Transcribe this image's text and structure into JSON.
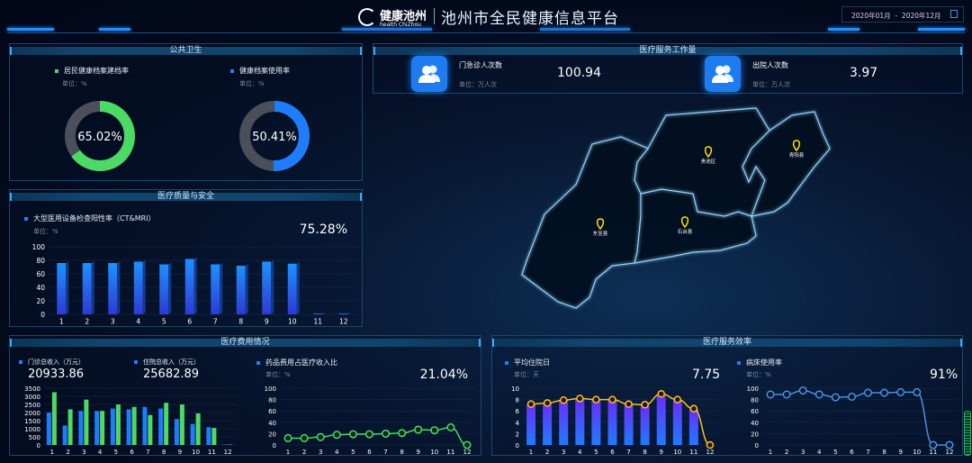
{
  "header": {
    "logo_text": "健康池州",
    "logo_sub": "health ChiZhou",
    "title": "池州市全民健康信息平台",
    "date_start": "2020年01月",
    "date_sep": "-",
    "date_end": "2020年12月"
  },
  "public_health": {
    "title": "公共卫生",
    "items": [
      {
        "label": "居民健康档案建档率",
        "unit": "单位：%",
        "value": "65.02%",
        "fraction": 0.6502,
        "color": "#4cd964"
      },
      {
        "label": "健康档案使用率",
        "unit": "单位：%",
        "value": "50.41%",
        "fraction": 0.5041,
        "color": "#1e7cff"
      }
    ]
  },
  "workload": {
    "title": "医疗服务工作量",
    "items": [
      {
        "label": "门急诊人次数",
        "unit": "单位：万人次",
        "value": "100.94"
      },
      {
        "label": "出院人次数",
        "unit": "单位：万人次",
        "value": "3.97"
      }
    ]
  },
  "map": {
    "regions": [
      "贵池区",
      "青阳县",
      "东至县",
      "石台县"
    ]
  },
  "quality": {
    "title": "医疗质量与安全",
    "label": "大型医用设备检查阳性率（CT&MRI）",
    "unit": "单位：%",
    "value": "75.28%"
  },
  "cost": {
    "title": "医疗费用情况",
    "outpatient_label": "门诊总收入（万元）",
    "outpatient_value": "20933.86",
    "inpatient_label": "住院总收入（万元）",
    "inpatient_value": "25682.89",
    "drug_label": "药品费用占医疗收入比",
    "drug_unit": "单位：%",
    "drug_value": "21.04%"
  },
  "efficiency": {
    "title": "医疗服务效率",
    "stay_label": "平均住院日",
    "stay_unit": "单位：天",
    "stay_value": "7.75",
    "bed_label": "病床使用率",
    "bed_unit": "单位：%",
    "bed_value": "91%"
  },
  "chart_data": [
    {
      "id": "ct",
      "type": "bar",
      "categories": [
        "1",
        "2",
        "3",
        "4",
        "5",
        "6",
        "7",
        "8",
        "9",
        "10",
        "11",
        "12"
      ],
      "values": [
        76,
        76,
        76,
        78,
        74,
        82,
        74,
        72,
        78,
        75,
        0,
        0
      ],
      "ylim": [
        0,
        100
      ],
      "yticks": [
        0,
        20,
        40,
        60,
        80,
        100
      ],
      "colors": [
        "#1e90ff",
        "#2c3bd6"
      ]
    },
    {
      "id": "income",
      "type": "bar",
      "categories": [
        "1",
        "2",
        "3",
        "4",
        "5",
        "6",
        "7",
        "8",
        "9",
        "10",
        "11",
        "12"
      ],
      "series": [
        {
          "values": [
            2000,
            1200,
            2100,
            2100,
            2250,
            2200,
            2350,
            2250,
            1600,
            1300,
            1100,
            0
          ],
          "color": "#1e7cff"
        },
        {
          "values": [
            3250,
            2200,
            2800,
            2100,
            2500,
            2350,
            1850,
            2600,
            2500,
            1950,
            1050,
            0
          ],
          "color": "#4cd964"
        }
      ],
      "ylim": [
        0,
        3500
      ],
      "yticks": [
        0,
        500,
        1000,
        1500,
        2000,
        2500,
        3000,
        3500
      ]
    },
    {
      "id": "drug",
      "type": "line",
      "categories": [
        "1",
        "2",
        "3",
        "4",
        "5",
        "6",
        "7",
        "8",
        "9",
        "10",
        "11",
        "12"
      ],
      "values": [
        12,
        12,
        14,
        18,
        19,
        19,
        20,
        21,
        27,
        26,
        31,
        0
      ],
      "ylim": [
        0,
        100
      ],
      "yticks": [
        0,
        20,
        40,
        60,
        80,
        100
      ],
      "color": "#4cd964"
    },
    {
      "id": "stay",
      "type": "bar+line",
      "categories": [
        "1",
        "2",
        "3",
        "4",
        "5",
        "6",
        "7",
        "8",
        "9",
        "10",
        "11",
        "12"
      ],
      "values": [
        7.2,
        7.4,
        7.9,
        8.2,
        8,
        8,
        7.2,
        7.1,
        9,
        8,
        6.4,
        0
      ],
      "ylim": [
        0,
        10
      ],
      "yticks": [
        0,
        2,
        4,
        6,
        8,
        10
      ],
      "bar_colors": [
        "#6a2cff",
        "#1e7cff"
      ],
      "line_color": "#f5c518"
    },
    {
      "id": "bed",
      "type": "line",
      "categories": [
        "1",
        "2",
        "3",
        "4",
        "5",
        "6",
        "7",
        "8",
        "9",
        "10",
        "11",
        "12"
      ],
      "values": [
        89,
        89,
        96,
        89,
        84,
        85,
        92,
        92,
        93,
        93,
        0,
        0
      ],
      "ylim": [
        0,
        100
      ],
      "yticks": [
        0,
        20,
        40,
        60,
        80,
        100
      ],
      "color": "#4a90e2"
    }
  ]
}
